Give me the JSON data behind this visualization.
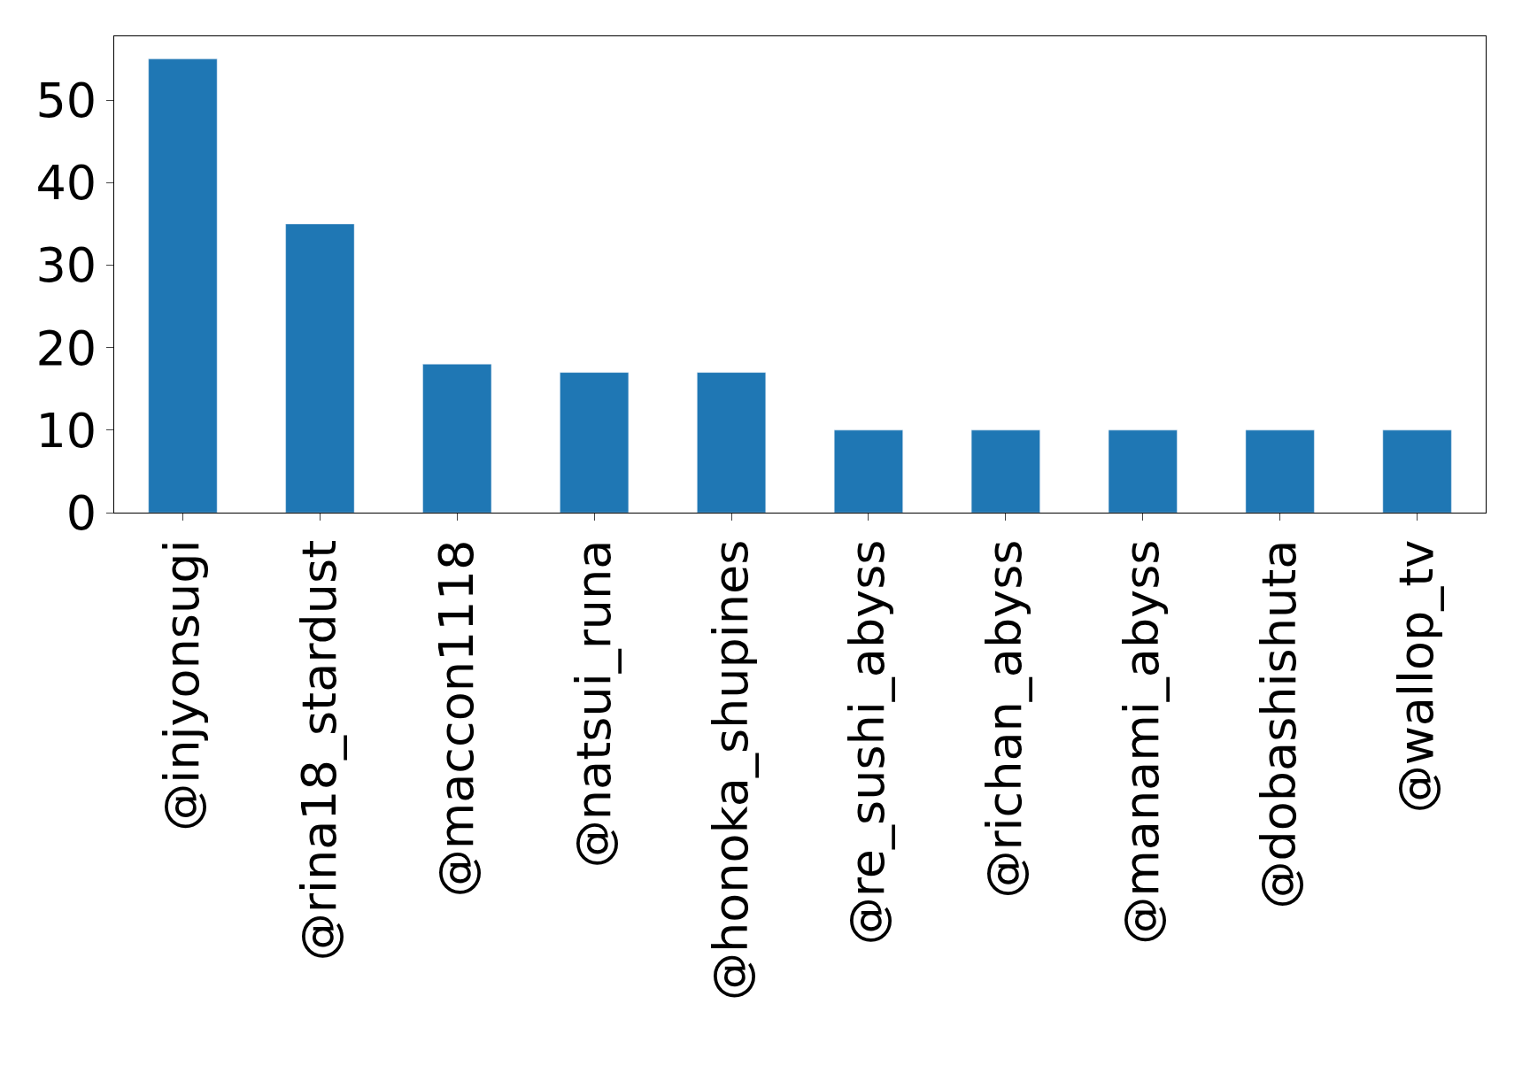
{
  "chart_data": {
    "type": "bar",
    "categories": [
      "@injyonsugi",
      "@rina18_stardust",
      "@maccon1118",
      "@natsui_runa",
      "@honoka_shupines",
      "@re_sushi_abyss",
      "@richan_abyss",
      "@manami_abyss",
      "@dobashishuta",
      "@wallop_tv"
    ],
    "values": [
      55,
      35,
      18,
      17,
      17,
      10,
      10,
      10,
      10,
      10
    ],
    "color": "#1f77b4",
    "ylim": [
      0,
      57.75
    ],
    "yticks": [
      0,
      10,
      20,
      30,
      40,
      50
    ]
  }
}
